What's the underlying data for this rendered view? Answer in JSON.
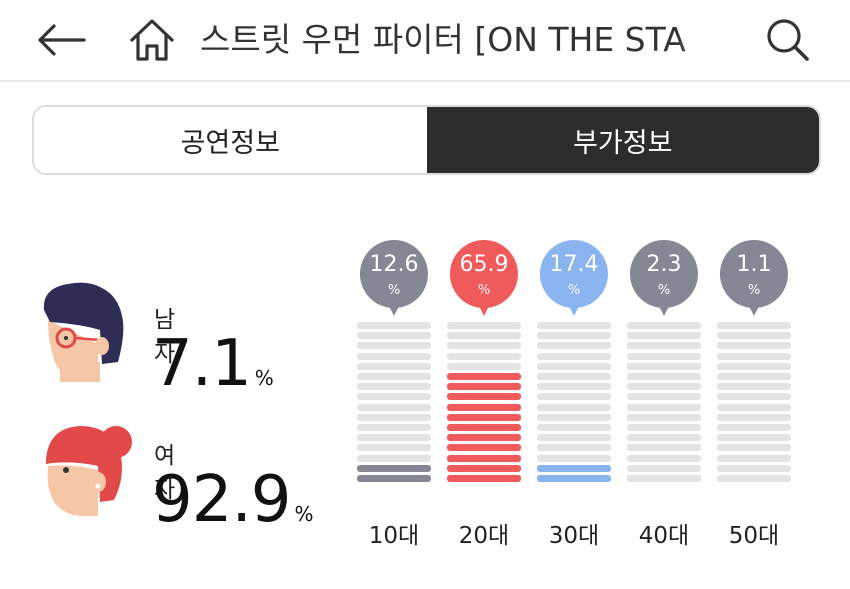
{
  "header": {
    "title": "스트릿 우먼 파이터 [ON THE STA",
    "back_icon": "back-arrow-icon",
    "home_icon": "home-icon",
    "search_icon": "search-icon"
  },
  "tabs": [
    {
      "label": "공연정보",
      "active": false
    },
    {
      "label": "부가정보",
      "active": true
    }
  ],
  "gender": [
    {
      "label": "남자",
      "value": "7.1",
      "unit": "%",
      "icon": "male-avatar-icon"
    },
    {
      "label": "여자",
      "value": "92.9",
      "unit": "%",
      "icon": "female-avatar-icon"
    }
  ],
  "age_groups": [
    {
      "label": "10대",
      "value": "12.6",
      "unit": "%",
      "color": "#858794",
      "filled_segments": 2
    },
    {
      "label": "20대",
      "value": "65.9",
      "unit": "%",
      "color": "#f15a5a",
      "filled_segments": 11
    },
    {
      "label": "30대",
      "value": "17.4",
      "unit": "%",
      "color": "#8ab4f0",
      "filled_segments": 2
    },
    {
      "label": "40대",
      "value": "2.3",
      "unit": "%",
      "color": "#858794",
      "filled_segments": 0
    },
    {
      "label": "50대",
      "value": "1.1",
      "unit": "%",
      "color": "#858794",
      "filled_segments": 0
    }
  ],
  "colors": {
    "bar_empty": "#e3e3e3",
    "active_tab": "#2d2d2d"
  }
}
